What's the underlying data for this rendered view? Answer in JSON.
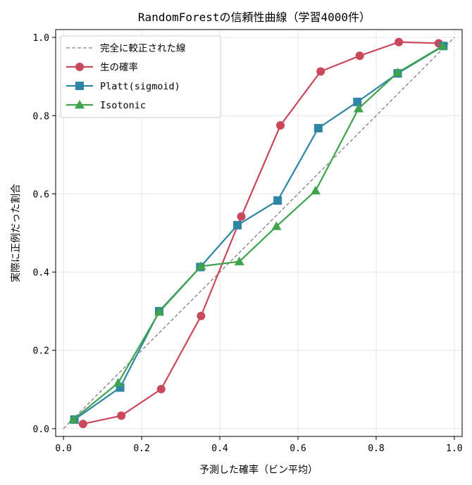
{
  "chart_data": {
    "type": "line",
    "title": "RandomForestの信頼性曲線（学習4000件）",
    "xlabel": "予測した確率（ビン平均）",
    "ylabel": "実際に正例だった割合",
    "xlim": [
      -0.02,
      1.02
    ],
    "ylim": [
      -0.02,
      1.02
    ],
    "xticks": [
      "0.0",
      "0.2",
      "0.4",
      "0.6",
      "0.8",
      "1.0"
    ],
    "yticks": [
      "0.0",
      "0.2",
      "0.4",
      "0.6",
      "0.8",
      "1.0"
    ],
    "grid": true,
    "legend_position": "top-left",
    "reference": {
      "name": "完全に較正された線",
      "x": [
        0,
        1
      ],
      "y": [
        0,
        1
      ],
      "color": "#808080",
      "style": "dashed"
    },
    "series": [
      {
        "name": "生の確率",
        "color": "#c9485b",
        "marker": "circle",
        "x": [
          0.05,
          0.148,
          0.25,
          0.352,
          0.455,
          0.555,
          0.658,
          0.758,
          0.858,
          0.96
        ],
        "y": [
          0.012,
          0.033,
          0.101,
          0.288,
          0.542,
          0.775,
          0.913,
          0.953,
          0.988,
          0.985
        ]
      },
      {
        "name": "Platt(sigmoid)",
        "color": "#2e86a4",
        "marker": "square",
        "x": [
          0.028,
          0.145,
          0.245,
          0.35,
          0.445,
          0.548,
          0.652,
          0.752,
          0.855,
          0.972
        ],
        "y": [
          0.023,
          0.105,
          0.3,
          0.413,
          0.52,
          0.583,
          0.768,
          0.835,
          0.908,
          0.978
        ]
      },
      {
        "name": "Isotonic",
        "color": "#3fa34d",
        "marker": "triangle",
        "x": [
          0.025,
          0.14,
          0.245,
          0.352,
          0.45,
          0.545,
          0.645,
          0.755,
          0.855,
          0.97
        ],
        "y": [
          0.023,
          0.117,
          0.298,
          0.415,
          0.427,
          0.517,
          0.608,
          0.818,
          0.91,
          0.978
        ]
      }
    ]
  }
}
